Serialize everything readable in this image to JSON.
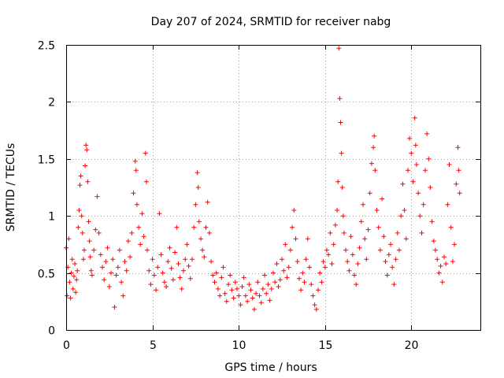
{
  "chart_data": {
    "type": "scatter",
    "title": "Day 207 of 2024, SRMTID for receiver nabg",
    "xlabel": "GPS time / hours",
    "ylabel": "SRMTID / TECUs",
    "xlim": [
      0,
      24
    ],
    "ylim": [
      0,
      2.5
    ],
    "xticks": [
      0,
      5,
      10,
      15,
      20
    ],
    "xtick_labels": [
      "0",
      "5",
      "10",
      "15",
      "20"
    ],
    "yticks": [
      0,
      0.5,
      1,
      1.5,
      2,
      2.5
    ],
    "ytick_labels": [
      "0",
      "0.5",
      "1",
      "1.5",
      "2",
      "2.5"
    ],
    "grid": true,
    "marker": "+",
    "color": "#ff0000",
    "series": [
      {
        "name": "SRMTID",
        "points": [
          [
            0.0,
            0.72
          ],
          [
            0.05,
            0.3
          ],
          [
            0.1,
            0.55
          ],
          [
            0.15,
            0.8
          ],
          [
            0.2,
            0.42
          ],
          [
            0.25,
            0.28
          ],
          [
            0.3,
            0.5
          ],
          [
            0.35,
            0.62
          ],
          [
            0.4,
            0.36
          ],
          [
            0.45,
            0.47
          ],
          [
            0.5,
            0.58
          ],
          [
            0.55,
            0.33
          ],
          [
            0.6,
            0.44
          ],
          [
            0.65,
            0.52
          ],
          [
            0.7,
            0.9
          ],
          [
            0.75,
            1.05
          ],
          [
            0.8,
            1.27
          ],
          [
            0.85,
            1.35
          ],
          [
            0.9,
            1.0
          ],
          [
            0.95,
            0.85
          ],
          [
            1.0,
            0.62
          ],
          [
            1.05,
            0.7
          ],
          [
            1.1,
            1.44
          ],
          [
            1.15,
            1.62
          ],
          [
            1.2,
            1.58
          ],
          [
            1.25,
            1.3
          ],
          [
            1.3,
            0.95
          ],
          [
            1.35,
            0.78
          ],
          [
            1.4,
            0.64
          ],
          [
            1.45,
            0.52
          ],
          [
            1.5,
            0.48
          ],
          [
            1.6,
            0.7
          ],
          [
            1.7,
            0.88
          ],
          [
            1.8,
            1.17
          ],
          [
            1.9,
            0.85
          ],
          [
            2.0,
            0.66
          ],
          [
            2.1,
            0.55
          ],
          [
            2.2,
            0.44
          ],
          [
            2.3,
            0.6
          ],
          [
            2.4,
            0.72
          ],
          [
            2.5,
            0.38
          ],
          [
            2.6,
            0.5
          ],
          [
            2.7,
            0.62
          ],
          [
            2.8,
            0.2
          ],
          [
            2.9,
            0.48
          ],
          [
            3.0,
            0.55
          ],
          [
            3.1,
            0.7
          ],
          [
            3.2,
            0.42
          ],
          [
            3.3,
            0.3
          ],
          [
            3.4,
            0.6
          ],
          [
            3.5,
            0.52
          ],
          [
            3.6,
            0.78
          ],
          [
            3.7,
            0.64
          ],
          [
            3.8,
            0.85
          ],
          [
            3.9,
            1.2
          ],
          [
            4.0,
            1.48
          ],
          [
            4.05,
            1.4
          ],
          [
            4.1,
            1.1
          ],
          [
            4.2,
            0.9
          ],
          [
            4.3,
            0.75
          ],
          [
            4.4,
            1.02
          ],
          [
            4.5,
            0.82
          ],
          [
            4.6,
            1.55
          ],
          [
            4.65,
            1.3
          ],
          [
            4.7,
            0.7
          ],
          [
            4.8,
            0.52
          ],
          [
            4.9,
            0.4
          ],
          [
            5.0,
            0.62
          ],
          [
            5.1,
            0.48
          ],
          [
            5.2,
            0.35
          ],
          [
            5.3,
            0.55
          ],
          [
            5.4,
            1.02
          ],
          [
            5.5,
            0.66
          ],
          [
            5.6,
            0.5
          ],
          [
            5.7,
            0.42
          ],
          [
            5.8,
            0.38
          ],
          [
            5.9,
            0.6
          ],
          [
            6.0,
            0.72
          ],
          [
            6.1,
            0.54
          ],
          [
            6.2,
            0.44
          ],
          [
            6.3,
            0.68
          ],
          [
            6.4,
            0.9
          ],
          [
            6.5,
            0.58
          ],
          [
            6.6,
            0.46
          ],
          [
            6.7,
            0.36
          ],
          [
            6.8,
            0.52
          ],
          [
            6.9,
            0.62
          ],
          [
            7.0,
            0.75
          ],
          [
            7.1,
            0.56
          ],
          [
            7.2,
            0.45
          ],
          [
            7.3,
            0.62
          ],
          [
            7.4,
            0.9
          ],
          [
            7.5,
            1.1
          ],
          [
            7.6,
            1.38
          ],
          [
            7.65,
            1.25
          ],
          [
            7.7,
            0.95
          ],
          [
            7.8,
            0.8
          ],
          [
            7.9,
            0.7
          ],
          [
            8.0,
            0.64
          ],
          [
            8.1,
            0.9
          ],
          [
            8.2,
            1.12
          ],
          [
            8.3,
            0.85
          ],
          [
            8.4,
            0.6
          ],
          [
            8.5,
            0.48
          ],
          [
            8.6,
            0.42
          ],
          [
            8.7,
            0.5
          ],
          [
            8.8,
            0.36
          ],
          [
            8.9,
            0.3
          ],
          [
            9.0,
            0.46
          ],
          [
            9.1,
            0.55
          ],
          [
            9.2,
            0.32
          ],
          [
            9.3,
            0.25
          ],
          [
            9.4,
            0.4
          ],
          [
            9.5,
            0.48
          ],
          [
            9.6,
            0.35
          ],
          [
            9.7,
            0.28
          ],
          [
            9.8,
            0.42
          ],
          [
            9.9,
            0.36
          ],
          [
            10.0,
            0.3
          ],
          [
            10.1,
            0.22
          ],
          [
            10.2,
            0.38
          ],
          [
            10.3,
            0.46
          ],
          [
            10.4,
            0.3
          ],
          [
            10.5,
            0.25
          ],
          [
            10.6,
            0.4
          ],
          [
            10.7,
            0.35
          ],
          [
            10.8,
            0.28
          ],
          [
            10.9,
            0.18
          ],
          [
            11.0,
            0.32
          ],
          [
            11.1,
            0.42
          ],
          [
            11.2,
            0.3
          ],
          [
            11.3,
            0.24
          ],
          [
            11.4,
            0.36
          ],
          [
            11.5,
            0.48
          ],
          [
            11.6,
            0.32
          ],
          [
            11.7,
            0.4
          ],
          [
            11.8,
            0.26
          ],
          [
            11.9,
            0.36
          ],
          [
            12.0,
            0.5
          ],
          [
            12.1,
            0.42
          ],
          [
            12.2,
            0.58
          ],
          [
            12.3,
            0.38
          ],
          [
            12.4,
            0.44
          ],
          [
            12.5,
            0.62
          ],
          [
            12.6,
            0.52
          ],
          [
            12.7,
            0.75
          ],
          [
            12.8,
            0.46
          ],
          [
            12.9,
            0.55
          ],
          [
            13.0,
            0.7
          ],
          [
            13.1,
            0.9
          ],
          [
            13.2,
            1.05
          ],
          [
            13.3,
            0.8
          ],
          [
            13.4,
            0.6
          ],
          [
            13.5,
            0.45
          ],
          [
            13.6,
            0.35
          ],
          [
            13.7,
            0.5
          ],
          [
            13.8,
            0.42
          ],
          [
            13.9,
            0.62
          ],
          [
            14.0,
            0.8
          ],
          [
            14.1,
            0.55
          ],
          [
            14.2,
            0.4
          ],
          [
            14.3,
            0.3
          ],
          [
            14.4,
            0.22
          ],
          [
            14.5,
            0.18
          ],
          [
            14.6,
            0.35
          ],
          [
            14.7,
            0.5
          ],
          [
            14.8,
            0.42
          ],
          [
            14.9,
            0.6
          ],
          [
            15.0,
            0.55
          ],
          [
            15.1,
            0.7
          ],
          [
            15.2,
            0.66
          ],
          [
            15.3,
            0.85
          ],
          [
            15.4,
            0.58
          ],
          [
            15.5,
            0.75
          ],
          [
            15.6,
            0.92
          ],
          [
            15.7,
            1.05
          ],
          [
            15.75,
            1.3
          ],
          [
            15.8,
            2.47
          ],
          [
            15.85,
            2.03
          ],
          [
            15.9,
            1.82
          ],
          [
            15.95,
            1.55
          ],
          [
            16.0,
            1.25
          ],
          [
            16.05,
            1.0
          ],
          [
            16.1,
            0.85
          ],
          [
            16.2,
            0.7
          ],
          [
            16.3,
            0.6
          ],
          [
            16.4,
            0.52
          ],
          [
            16.5,
            0.82
          ],
          [
            16.6,
            0.66
          ],
          [
            16.7,
            0.48
          ],
          [
            16.8,
            0.4
          ],
          [
            16.9,
            0.58
          ],
          [
            17.0,
            0.72
          ],
          [
            17.1,
            0.95
          ],
          [
            17.2,
            1.1
          ],
          [
            17.3,
            0.8
          ],
          [
            17.4,
            0.62
          ],
          [
            17.5,
            0.88
          ],
          [
            17.6,
            1.2
          ],
          [
            17.7,
            1.46
          ],
          [
            17.8,
            1.6
          ],
          [
            17.85,
            1.7
          ],
          [
            17.9,
            1.4
          ],
          [
            18.0,
            1.05
          ],
          [
            18.1,
            0.9
          ],
          [
            18.2,
            0.7
          ],
          [
            18.3,
            1.15
          ],
          [
            18.4,
            0.82
          ],
          [
            18.5,
            0.6
          ],
          [
            18.6,
            0.48
          ],
          [
            18.7,
            0.66
          ],
          [
            18.8,
            0.75
          ],
          [
            18.9,
            0.55
          ],
          [
            19.0,
            0.4
          ],
          [
            19.1,
            0.62
          ],
          [
            19.2,
            0.85
          ],
          [
            19.3,
            0.7
          ],
          [
            19.4,
            1.0
          ],
          [
            19.5,
            1.28
          ],
          [
            19.6,
            1.05
          ],
          [
            19.7,
            0.8
          ],
          [
            19.8,
            1.4
          ],
          [
            19.9,
            1.68
          ],
          [
            20.0,
            1.55
          ],
          [
            20.1,
            1.3
          ],
          [
            20.2,
            1.86
          ],
          [
            20.25,
            1.62
          ],
          [
            20.3,
            1.45
          ],
          [
            20.4,
            1.2
          ],
          [
            20.5,
            1.0
          ],
          [
            20.6,
            0.85
          ],
          [
            20.7,
            1.1
          ],
          [
            20.8,
            1.4
          ],
          [
            20.9,
            1.72
          ],
          [
            21.0,
            1.5
          ],
          [
            21.1,
            1.25
          ],
          [
            21.2,
            0.95
          ],
          [
            21.3,
            0.78
          ],
          [
            21.4,
            0.7
          ],
          [
            21.5,
            0.62
          ],
          [
            21.6,
            0.5
          ],
          [
            21.7,
            0.56
          ],
          [
            21.8,
            0.42
          ],
          [
            21.9,
            0.64
          ],
          [
            22.0,
            0.58
          ],
          [
            22.1,
            1.1
          ],
          [
            22.2,
            1.45
          ],
          [
            22.3,
            0.9
          ],
          [
            22.4,
            0.6
          ],
          [
            22.5,
            0.75
          ],
          [
            22.6,
            1.28
          ],
          [
            22.7,
            1.6
          ],
          [
            22.75,
            1.4
          ],
          [
            22.8,
            1.2
          ]
        ]
      }
    ]
  }
}
